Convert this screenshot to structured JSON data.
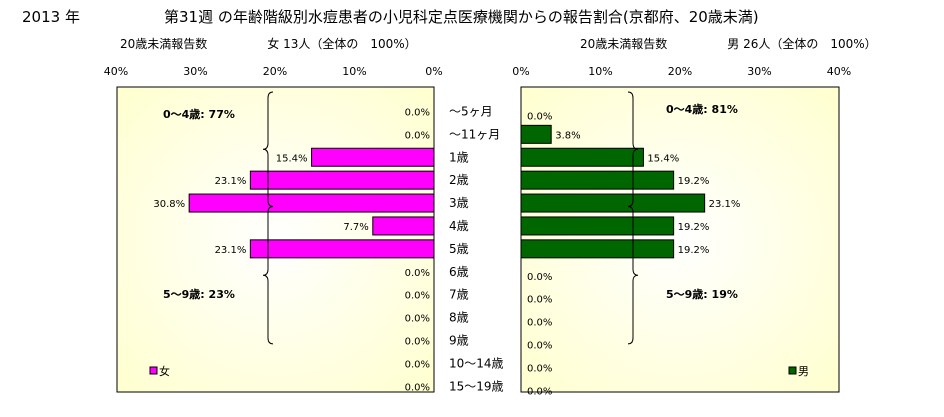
{
  "header": {
    "year": "2013 年",
    "title": "第31週 の年齢階級別水痘患者の小児科定点医療機関からの報告割合(京都府、20歳未満)",
    "female_subtitle": "20歳未満報告数　　　　　女 13人（全体の　100%）",
    "male_subtitle": "20歳未満報告数　　　　　男 26人（全体の　100%）"
  },
  "chart_data": [
    {
      "type": "bar",
      "orientation": "horizontal",
      "direction": "right-to-left",
      "categories": [
        "～5ヶ月",
        "～11ヶ月",
        "1歳",
        "2歳",
        "3歳",
        "4歳",
        "5歳",
        "6歳",
        "7歳",
        "8歳",
        "9歳",
        "10～14歳",
        "15～19歳"
      ],
      "series": [
        {
          "name": "女",
          "values": [
            0.0,
            0.0,
            15.4,
            23.1,
            30.8,
            7.7,
            23.1,
            0.0,
            0.0,
            0.0,
            0.0,
            0.0,
            0.0
          ],
          "labels": [
            "0.0%",
            "0.0%",
            "15.4%",
            "23.1%",
            "30.8%",
            "7.7%",
            "23.1%",
            "0.0%",
            "0.0%",
            "0.0%",
            "0.0%",
            "0.0%",
            "0.0%"
          ]
        }
      ],
      "ticks": [
        "40%",
        "30%",
        "20%",
        "10%",
        "0%"
      ],
      "xlim": [
        0,
        40
      ],
      "legend": "bottom-left",
      "annotations": [
        "0～4歳: 77%",
        "5～9歳: 23%"
      ],
      "colors": {
        "bar": "#ff00ff",
        "plot_bg": "#ffffcc",
        "border": "#000000"
      }
    },
    {
      "type": "bar",
      "orientation": "horizontal",
      "direction": "left-to-right",
      "categories": [
        "～5ヶ月",
        "～11ヶ月",
        "1歳",
        "2歳",
        "3歳",
        "4歳",
        "5歳",
        "6歳",
        "7歳",
        "8歳",
        "9歳",
        "10～14歳",
        "15～19歳"
      ],
      "series": [
        {
          "name": "男",
          "values": [
            0.0,
            3.8,
            15.4,
            19.2,
            23.1,
            19.2,
            19.2,
            0.0,
            0.0,
            0.0,
            0.0,
            0.0,
            0.0
          ],
          "labels": [
            "0.0%",
            "3.8%",
            "15.4%",
            "19.2%",
            "23.1%",
            "19.2%",
            "19.2%",
            "0.0%",
            "0.0%",
            "0.0%",
            "0.0%",
            "0.0%",
            "0.0%"
          ]
        }
      ],
      "ticks": [
        "0%",
        "10%",
        "20%",
        "30%",
        "40%"
      ],
      "xlim": [
        0,
        40
      ],
      "legend": "bottom-right",
      "annotations": [
        "0～4歳: 81%",
        "5～9歳: 19%"
      ],
      "colors": {
        "bar": "#006600",
        "plot_bg": "#ffffcc",
        "border": "#000000"
      }
    }
  ]
}
